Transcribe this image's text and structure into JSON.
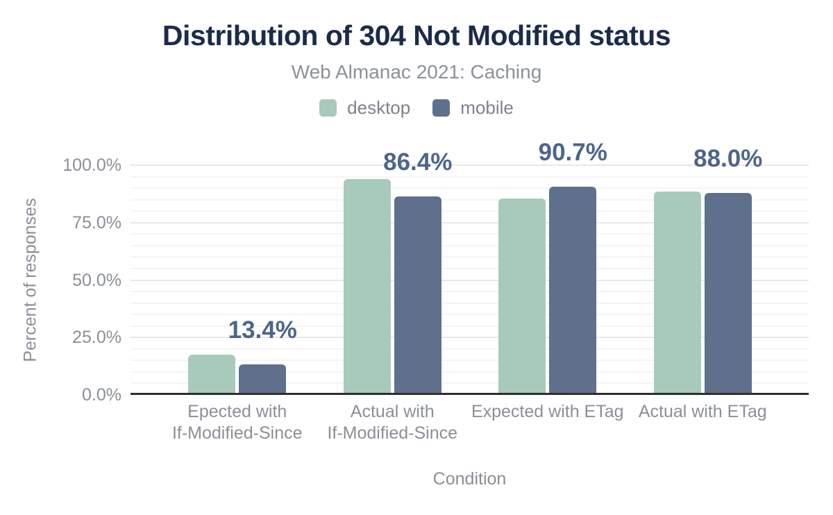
{
  "header": {
    "title": "Distribution of 304 Not Modified status",
    "subtitle": "Web Almanac 2021: Caching"
  },
  "colors": {
    "background": "#ffffff",
    "title": "#1c2b4a",
    "subtitle_gray": "#8b9099",
    "axis_text": "#8a8f97",
    "data_label": "#4d6589",
    "baseline": "#2e2e2e",
    "grid_major": "#e7e7e7",
    "grid_minor": "#f4f4f4",
    "desktop": "#a8cabb",
    "mobile": "#5e708b"
  },
  "chart_data": {
    "type": "bar",
    "title": "Distribution of 304 Not Modified status",
    "subtitle": "Web Almanac 2021: Caching",
    "xlabel": "Condition",
    "ylabel": "Percent of responses",
    "ylim": [
      0,
      100
    ],
    "grid": "horizontal: minor every 5%, major every 25%",
    "legend_position": "top",
    "yticks": [
      {
        "value": 0,
        "label": "0.0%"
      },
      {
        "value": 25,
        "label": "25.0%"
      },
      {
        "value": 50,
        "label": "50.0%"
      },
      {
        "value": 75,
        "label": "75.0%"
      },
      {
        "value": 100,
        "label": "100.0%"
      }
    ],
    "categories": [
      "Epected with\nIf-Modified-Since",
      "Actual with\nIf-Modified-Since",
      "Expected with ETag",
      "Actual with ETag"
    ],
    "series": [
      {
        "name": "desktop",
        "color": "#a8cabb",
        "values": [
          17.5,
          93.9,
          85.5,
          88.6
        ]
      },
      {
        "name": "mobile",
        "color": "#5e708b",
        "values": [
          13.4,
          86.4,
          90.7,
          88.0
        ]
      }
    ],
    "data_labels": [
      "13.4%",
      "86.4%",
      "90.7%",
      "88.0%"
    ],
    "data_labels_series": "mobile"
  }
}
